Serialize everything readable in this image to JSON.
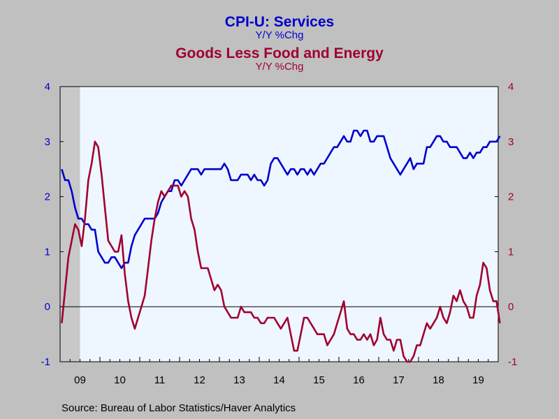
{
  "chart_data": {
    "type": "line",
    "title": "CPI-U: Services",
    "title_sub": "Y/Y %Chg",
    "title2": "Goods Less Food and Energy",
    "title2_sub": "Y/Y %Chg",
    "source": "Source:  Bureau of Labor Statistics/Haver Analytics",
    "x_range": [
      "2009-01",
      "2019-12"
    ],
    "x_tick_labels": [
      "09",
      "10",
      "11",
      "12",
      "13",
      "14",
      "15",
      "16",
      "17",
      "18",
      "19"
    ],
    "y_left_range": [
      -1,
      4
    ],
    "y_right_range": [
      -1,
      4
    ],
    "y_ticks": [
      -1,
      0,
      1,
      2,
      3,
      4
    ],
    "recession_shading": [
      "2009-01",
      "2009-06"
    ],
    "zero_line": true,
    "colors": {
      "plot_bg": "#eef6ff",
      "frame_bg": "#c0c0c0",
      "recession": "#c8c8c8",
      "services": "#0000cc",
      "goods": "#a00030"
    },
    "series": [
      {
        "name": "CPI-U: Services",
        "axis": "left",
        "color": "#0000cc",
        "start": "2009-01",
        "values": [
          2.5,
          2.3,
          2.3,
          2.1,
          1.8,
          1.6,
          1.6,
          1.5,
          1.5,
          1.4,
          1.4,
          1.0,
          0.9,
          0.8,
          0.8,
          0.9,
          0.9,
          0.8,
          0.7,
          0.8,
          0.8,
          1.1,
          1.3,
          1.4,
          1.5,
          1.6,
          1.6,
          1.6,
          1.6,
          1.7,
          1.9,
          2.0,
          2.1,
          2.1,
          2.3,
          2.3,
          2.2,
          2.3,
          2.4,
          2.5,
          2.5,
          2.5,
          2.4,
          2.5,
          2.5,
          2.5,
          2.5,
          2.5,
          2.5,
          2.6,
          2.5,
          2.3,
          2.3,
          2.3,
          2.4,
          2.4,
          2.4,
          2.3,
          2.4,
          2.3,
          2.3,
          2.2,
          2.3,
          2.6,
          2.7,
          2.7,
          2.6,
          2.5,
          2.4,
          2.5,
          2.5,
          2.4,
          2.5,
          2.5,
          2.4,
          2.5,
          2.4,
          2.5,
          2.6,
          2.6,
          2.7,
          2.8,
          2.9,
          2.9,
          3.0,
          3.1,
          3.0,
          3.0,
          3.2,
          3.2,
          3.1,
          3.2,
          3.2,
          3.0,
          3.0,
          3.1,
          3.1,
          3.1,
          2.9,
          2.7,
          2.6,
          2.5,
          2.4,
          2.5,
          2.6,
          2.7,
          2.5,
          2.6,
          2.6,
          2.6,
          2.9,
          2.9,
          3.0,
          3.1,
          3.1,
          3.0,
          3.0,
          2.9,
          2.9,
          2.9,
          2.8,
          2.7,
          2.7,
          2.8,
          2.7,
          2.8,
          2.8,
          2.9,
          2.9,
          3.0,
          3.0,
          3.0,
          3.1
        ]
      },
      {
        "name": "Goods Less Food and Energy",
        "axis": "right",
        "color": "#a00030",
        "start": "2009-01",
        "values": [
          -0.3,
          0.3,
          0.9,
          1.2,
          1.5,
          1.4,
          1.1,
          1.6,
          2.3,
          2.6,
          3.0,
          2.9,
          2.4,
          1.8,
          1.2,
          1.1,
          1.0,
          1.0,
          1.3,
          0.6,
          0.1,
          -0.2,
          -0.4,
          -0.2,
          0.0,
          0.2,
          0.7,
          1.2,
          1.6,
          1.9,
          2.1,
          2.0,
          2.1,
          2.2,
          2.2,
          2.2,
          2.0,
          2.1,
          2.0,
          1.6,
          1.4,
          1.0,
          0.7,
          0.7,
          0.7,
          0.5,
          0.3,
          0.4,
          0.3,
          0.0,
          -0.1,
          -0.2,
          -0.2,
          -0.2,
          0.0,
          -0.1,
          -0.1,
          -0.1,
          -0.2,
          -0.2,
          -0.3,
          -0.3,
          -0.2,
          -0.2,
          -0.2,
          -0.3,
          -0.4,
          -0.3,
          -0.2,
          -0.5,
          -0.8,
          -0.8,
          -0.5,
          -0.2,
          -0.2,
          -0.3,
          -0.4,
          -0.5,
          -0.5,
          -0.5,
          -0.7,
          -0.6,
          -0.5,
          -0.3,
          -0.1,
          0.1,
          -0.4,
          -0.5,
          -0.5,
          -0.6,
          -0.6,
          -0.5,
          -0.6,
          -0.5,
          -0.7,
          -0.6,
          -0.2,
          -0.5,
          -0.6,
          -0.6,
          -0.8,
          -0.6,
          -0.6,
          -0.9,
          -1.0,
          -1.0,
          -0.9,
          -0.7,
          -0.7,
          -0.5,
          -0.3,
          -0.4,
          -0.3,
          -0.2,
          0.0,
          -0.2,
          -0.3,
          -0.1,
          0.2,
          0.1,
          0.3,
          0.1,
          0.0,
          -0.2,
          -0.2,
          0.2,
          0.4,
          0.8,
          0.7,
          0.3,
          0.1,
          0.1,
          -0.3
        ]
      }
    ]
  }
}
